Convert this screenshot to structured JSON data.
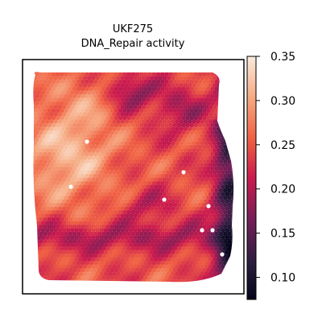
{
  "chart_data": {
    "type": "heatmap",
    "title_line1": "UKF275",
    "title_line2": "DNA_Repair activity",
    "colormap": "rocket",
    "colorbar": {
      "vmin": 0.075,
      "vmax": 0.35,
      "ticks": [
        "0.35",
        "0.30",
        "0.25",
        "0.20",
        "0.15",
        "0.10"
      ],
      "tick_values": [
        0.35,
        0.3,
        0.25,
        0.2,
        0.15,
        0.1
      ]
    },
    "axes_visible": false,
    "spot_shape": "hexagonal-grid",
    "missing_spot_color": "#ffffff",
    "value_summary": {
      "typical_range": [
        0.2,
        0.3
      ],
      "high_region": "left-center (about 0.30-0.34)",
      "low_regions": [
        "right edge (about 0.08-0.15)",
        "top-center (about 0.15)",
        "bottom band (about 0.15-0.18)"
      ]
    }
  }
}
